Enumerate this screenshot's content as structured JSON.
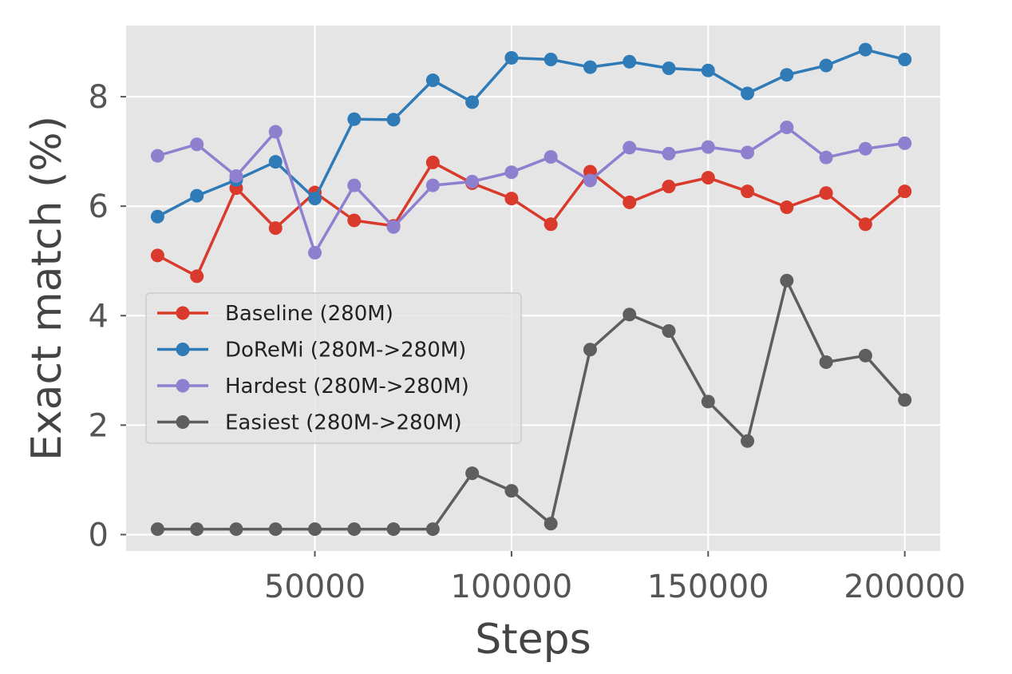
{
  "chart_data": {
    "type": "line",
    "title": "",
    "xlabel": "Steps",
    "ylabel": "Exact match (%)",
    "xlim": [
      2000,
      209000
    ],
    "ylim": [
      -0.3,
      9.3
    ],
    "xticks": [
      50000,
      100000,
      150000,
      200000
    ],
    "yticks": [
      0,
      2,
      4,
      6,
      8
    ],
    "grid": true,
    "legend_position": "center-left",
    "x": [
      10000,
      20000,
      30000,
      40000,
      50000,
      60000,
      70000,
      80000,
      90000,
      100000,
      110000,
      120000,
      130000,
      140000,
      150000,
      160000,
      170000,
      180000,
      190000,
      200000
    ],
    "series": [
      {
        "name": "Baseline (280M)",
        "color": "#d93a2b",
        "values": [
          5.1,
          4.72,
          6.33,
          5.6,
          6.25,
          5.74,
          5.64,
          6.8,
          6.42,
          6.14,
          5.67,
          6.63,
          6.07,
          6.36,
          6.52,
          6.27,
          5.98,
          6.24,
          5.67,
          6.27
        ]
      },
      {
        "name": "DoReMi (280M->280M)",
        "color": "#2f7bb7",
        "values": [
          5.81,
          6.19,
          6.48,
          6.81,
          6.14,
          7.59,
          7.58,
          8.3,
          7.9,
          8.71,
          8.68,
          8.54,
          8.64,
          8.52,
          8.48,
          8.06,
          8.4,
          8.57,
          8.86,
          8.68
        ]
      },
      {
        "name": "Hardest (280M->280M)",
        "color": "#8f7fcf",
        "values": [
          6.92,
          7.13,
          6.55,
          7.36,
          5.15,
          6.38,
          5.62,
          6.38,
          6.45,
          6.62,
          6.9,
          6.47,
          7.07,
          6.96,
          7.08,
          6.98,
          7.44,
          6.89,
          7.05,
          7.15
        ]
      },
      {
        "name": "Easiest (280M->280M)",
        "color": "#5e5e5e",
        "values": [
          0.1,
          0.1,
          0.1,
          0.1,
          0.1,
          0.1,
          0.1,
          0.1,
          1.12,
          0.8,
          0.2,
          3.38,
          4.02,
          3.72,
          2.43,
          1.71,
          4.64,
          3.15,
          3.27,
          2.46
        ]
      }
    ]
  }
}
